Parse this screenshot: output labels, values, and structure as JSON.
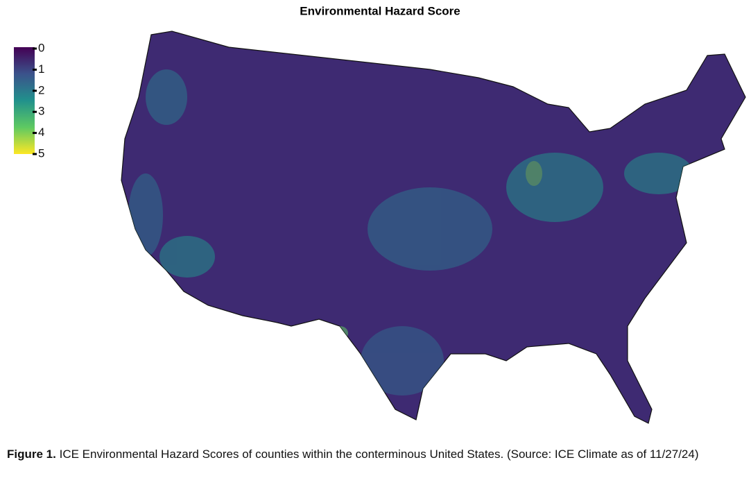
{
  "title": "Environmental Hazard Score",
  "colorbar": {
    "lim": [
      0,
      5
    ],
    "ticks": [
      0,
      1,
      2,
      3,
      4,
      5
    ],
    "colors": [
      "#440154",
      "#3b528b",
      "#21918c",
      "#5ec962",
      "#fde725"
    ]
  },
  "caption": {
    "label": "Figure 1.",
    "text": "ICE Environmental Hazard Scores of counties within the conterminous United States. (Source: ICE Climate as of 11/27/24)"
  }
}
